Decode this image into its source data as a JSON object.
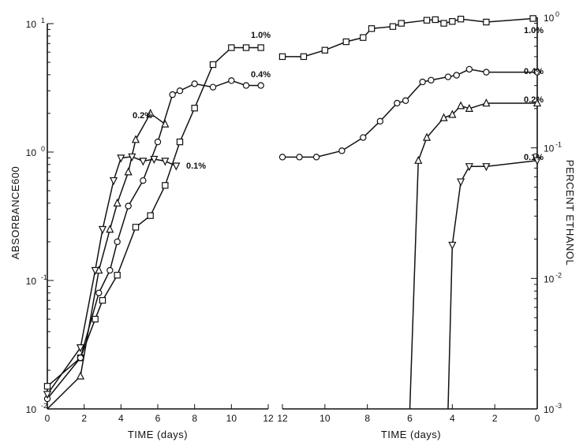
{
  "chart_data": [
    {
      "type": "line",
      "panel": "left",
      "xlabel": "TIME (days)",
      "ylabel": "ABSORBANCE600",
      "y_scale": "log",
      "ylim": [
        0.01,
        10
      ],
      "xlim": [
        0,
        12
      ],
      "x_ticks": [
        "0",
        "2",
        "4",
        "6",
        "8",
        "10",
        "12"
      ],
      "y_ticks": [
        {
          "value": 0.01,
          "base": "10",
          "exp": "-2"
        },
        {
          "value": 0.1,
          "base": "10",
          "exp": "-1"
        },
        {
          "value": 1,
          "base": "10",
          "exp": "0"
        },
        {
          "value": 10,
          "base": "10",
          "exp": "1"
        }
      ],
      "series": [
        {
          "name": "1.0%",
          "marker": "square",
          "x": [
            0,
            1.8,
            2.6,
            3.0,
            3.8,
            4.8,
            5.6,
            6.4,
            7.2,
            8.0,
            9.0,
            10.0,
            10.8,
            11.6
          ],
          "y": [
            0.015,
            0.025,
            0.05,
            0.07,
            0.11,
            0.26,
            0.32,
            0.55,
            1.2,
            2.2,
            4.8,
            6.5,
            6.5,
            6.5
          ]
        },
        {
          "name": "0.4%",
          "marker": "circle",
          "x": [
            0,
            1.8,
            2.8,
            3.4,
            3.8,
            4.4,
            5.2,
            6.0,
            6.8,
            7.2,
            8.0,
            9.0,
            10.0,
            10.8,
            11.6
          ],
          "y": [
            0.012,
            0.025,
            0.08,
            0.12,
            0.2,
            0.38,
            0.6,
            1.2,
            2.8,
            3.0,
            3.4,
            3.2,
            3.6,
            3.3,
            3.3
          ]
        },
        {
          "name": "0.2%",
          "marker": "triangle-up",
          "x": [
            0,
            1.8,
            2.8,
            3.4,
            3.8,
            4.4,
            4.8,
            5.6,
            6.4
          ],
          "y": [
            0.01,
            0.018,
            0.12,
            0.25,
            0.4,
            0.7,
            1.25,
            2.0,
            1.65
          ]
        },
        {
          "name": "0.1%",
          "marker": "triangle-down",
          "x": [
            0,
            1.8,
            2.6,
            3.0,
            3.6,
            4.0,
            4.6,
            5.2,
            5.8,
            6.4,
            7.0
          ],
          "y": [
            0.013,
            0.03,
            0.12,
            0.25,
            0.6,
            0.9,
            0.92,
            0.85,
            0.88,
            0.85,
            0.78
          ]
        }
      ]
    },
    {
      "type": "line",
      "panel": "right",
      "xlabel": "TIME (days)",
      "ylabel": "PERCENT ETHANOL",
      "y_scale": "log",
      "ylim": [
        0.001,
        1
      ],
      "xlim": [
        12,
        0
      ],
      "x_ticks": [
        "12",
        "10",
        "8",
        "6",
        "4",
        "2",
        "0"
      ],
      "y_ticks": [
        {
          "value": 0.001,
          "base": "10",
          "exp": "-3"
        },
        {
          "value": 0.01,
          "base": "10",
          "exp": "-2"
        },
        {
          "value": 0.1,
          "base": "10",
          "exp": "-1"
        },
        {
          "value": 1,
          "base": "10",
          "exp": "0"
        }
      ],
      "series": [
        {
          "name": "1.0%",
          "marker": "square",
          "x": [
            12,
            11,
            10,
            9,
            8.2,
            7.8,
            6.8,
            6.4,
            5.2,
            4.8,
            4.4,
            4.0,
            3.6,
            2.4,
            0.2
          ],
          "y": [
            0.5,
            0.5,
            0.56,
            0.65,
            0.7,
            0.82,
            0.85,
            0.9,
            0.95,
            0.96,
            0.9,
            0.93,
            0.97,
            0.92,
            0.98
          ]
        },
        {
          "name": "0.4%",
          "marker": "circle",
          "x": [
            12,
            11.2,
            10.4,
            9.2,
            8.2,
            7.4,
            6.6,
            6.2,
            5.4,
            5.0,
            4.2,
            3.8,
            3.2,
            2.4,
            0
          ],
          "y": [
            0.085,
            0.085,
            0.085,
            0.095,
            0.12,
            0.16,
            0.22,
            0.23,
            0.32,
            0.33,
            0.35,
            0.36,
            0.4,
            0.38,
            0.38
          ]
        },
        {
          "name": "0.2%",
          "marker": "triangle-up",
          "x": [
            6.0,
            5.6,
            5.2,
            4.4,
            4.0,
            3.6,
            3.2,
            2.4,
            0
          ],
          "y": [
            0.001,
            0.08,
            0.12,
            0.17,
            0.18,
            0.21,
            0.2,
            0.22,
            0.22
          ]
        },
        {
          "name": "0.1%",
          "marker": "triangle-down",
          "x": [
            4.2,
            4.0,
            3.6,
            3.2,
            2.4,
            0
          ],
          "y": [
            0.001,
            0.018,
            0.055,
            0.072,
            0.072,
            0.08
          ]
        }
      ]
    }
  ]
}
